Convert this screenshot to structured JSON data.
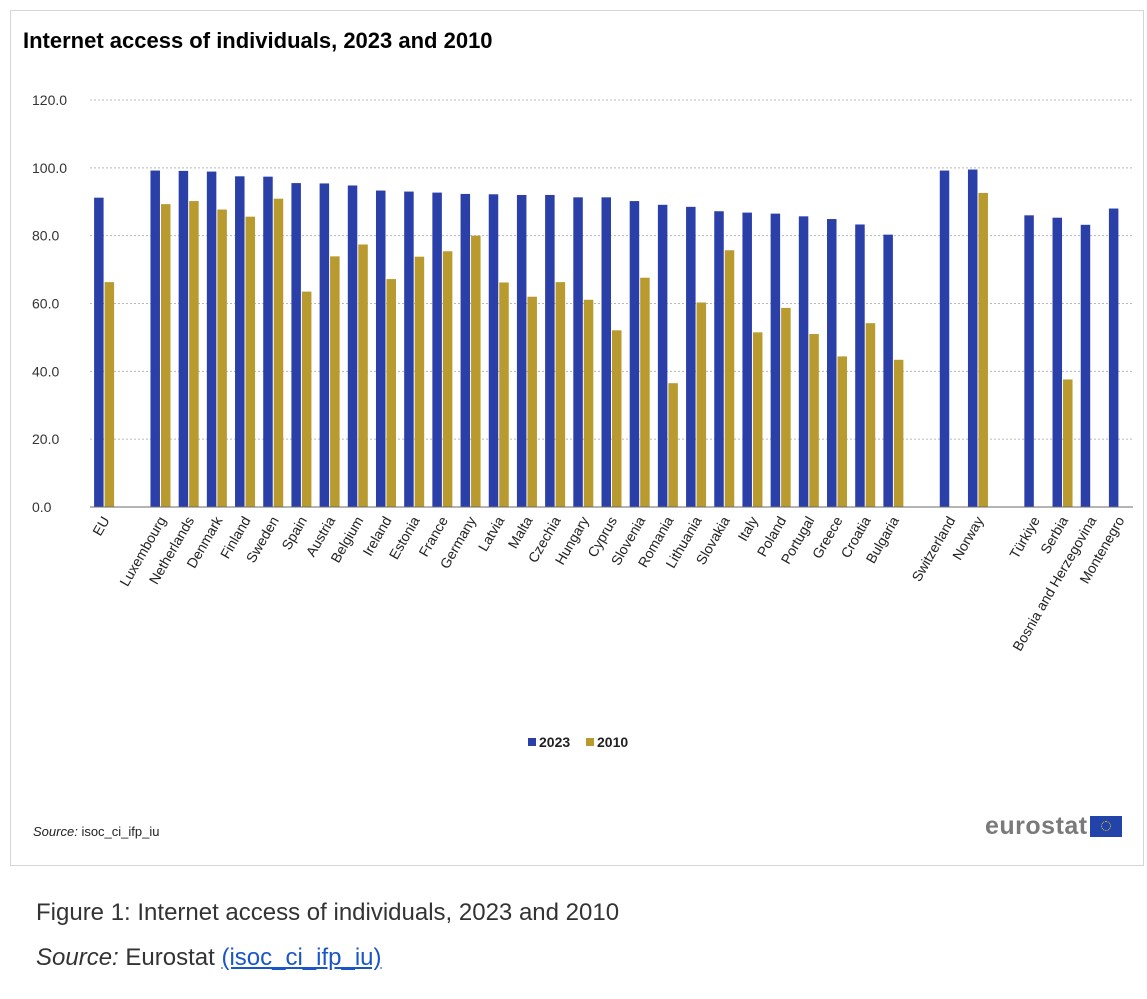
{
  "chart_data": {
    "type": "bar",
    "title": "Internet access of individuals, 2023 and 2010",
    "xlabel": "",
    "ylabel": "",
    "ylim": [
      0,
      120
    ],
    "yticks": [
      "120.0",
      "100.0",
      "80.0",
      "60.0",
      "40.0",
      "20.0",
      "0.0"
    ],
    "grid": true,
    "legend_position": "bottom-center",
    "categories": [
      "EU",
      "Luxembourg",
      "Netherlands",
      "Denmark",
      "Finland",
      "Sweden",
      "Spain",
      "Austria",
      "Belgium",
      "Ireland",
      "Estonia",
      "France",
      "Germany",
      "Latvia",
      "Malta",
      "Czechia",
      "Hungary",
      "Cyprus",
      "Slovenia",
      "Romania",
      "Lithuania",
      "Slovakia",
      "Italy",
      "Poland",
      "Portugal",
      "Greece",
      "Croatia",
      "Bulgaria",
      "Switzerland",
      "Norway",
      "Türkiye",
      "Serbia",
      "Bosnia and Herzegovina",
      "Montenegro"
    ],
    "group_breaks_after": [
      "EU",
      "Bulgaria",
      "Norway"
    ],
    "series": [
      {
        "name": "2023",
        "color": "#2b3fa8",
        "values": [
          91.2,
          99.2,
          99.1,
          98.9,
          97.5,
          97.4,
          95.5,
          95.4,
          94.8,
          93.3,
          93.0,
          92.7,
          92.3,
          92.2,
          92.0,
          92.0,
          91.3,
          91.3,
          90.2,
          89.1,
          88.5,
          87.2,
          86.8,
          86.5,
          85.7,
          84.9,
          83.3,
          80.3,
          99.2,
          99.5,
          86.0,
          85.3,
          83.2,
          88.0
        ]
      },
      {
        "name": "2010",
        "color": "#b89a2e",
        "values": [
          66.3,
          89.3,
          90.2,
          87.7,
          85.6,
          90.9,
          63.5,
          73.9,
          77.4,
          67.2,
          73.8,
          75.4,
          80.0,
          66.2,
          62.0,
          66.3,
          61.1,
          52.1,
          67.6,
          36.5,
          60.3,
          75.7,
          51.5,
          58.7,
          51.0,
          44.4,
          54.2,
          43.4,
          null,
          92.6,
          null,
          37.6,
          null,
          null
        ]
      }
    ]
  },
  "source_note": {
    "label": "Source:",
    "text": "isoc_ci_ifp_iu"
  },
  "logo_text": "eurostat",
  "caption": {
    "figure": "Figure 1: Internet access of individuals, 2023 and 2010",
    "source_label": "Source:",
    "source_text": "Eurostat",
    "link_text": "(isoc_ci_ifp_iu)"
  }
}
